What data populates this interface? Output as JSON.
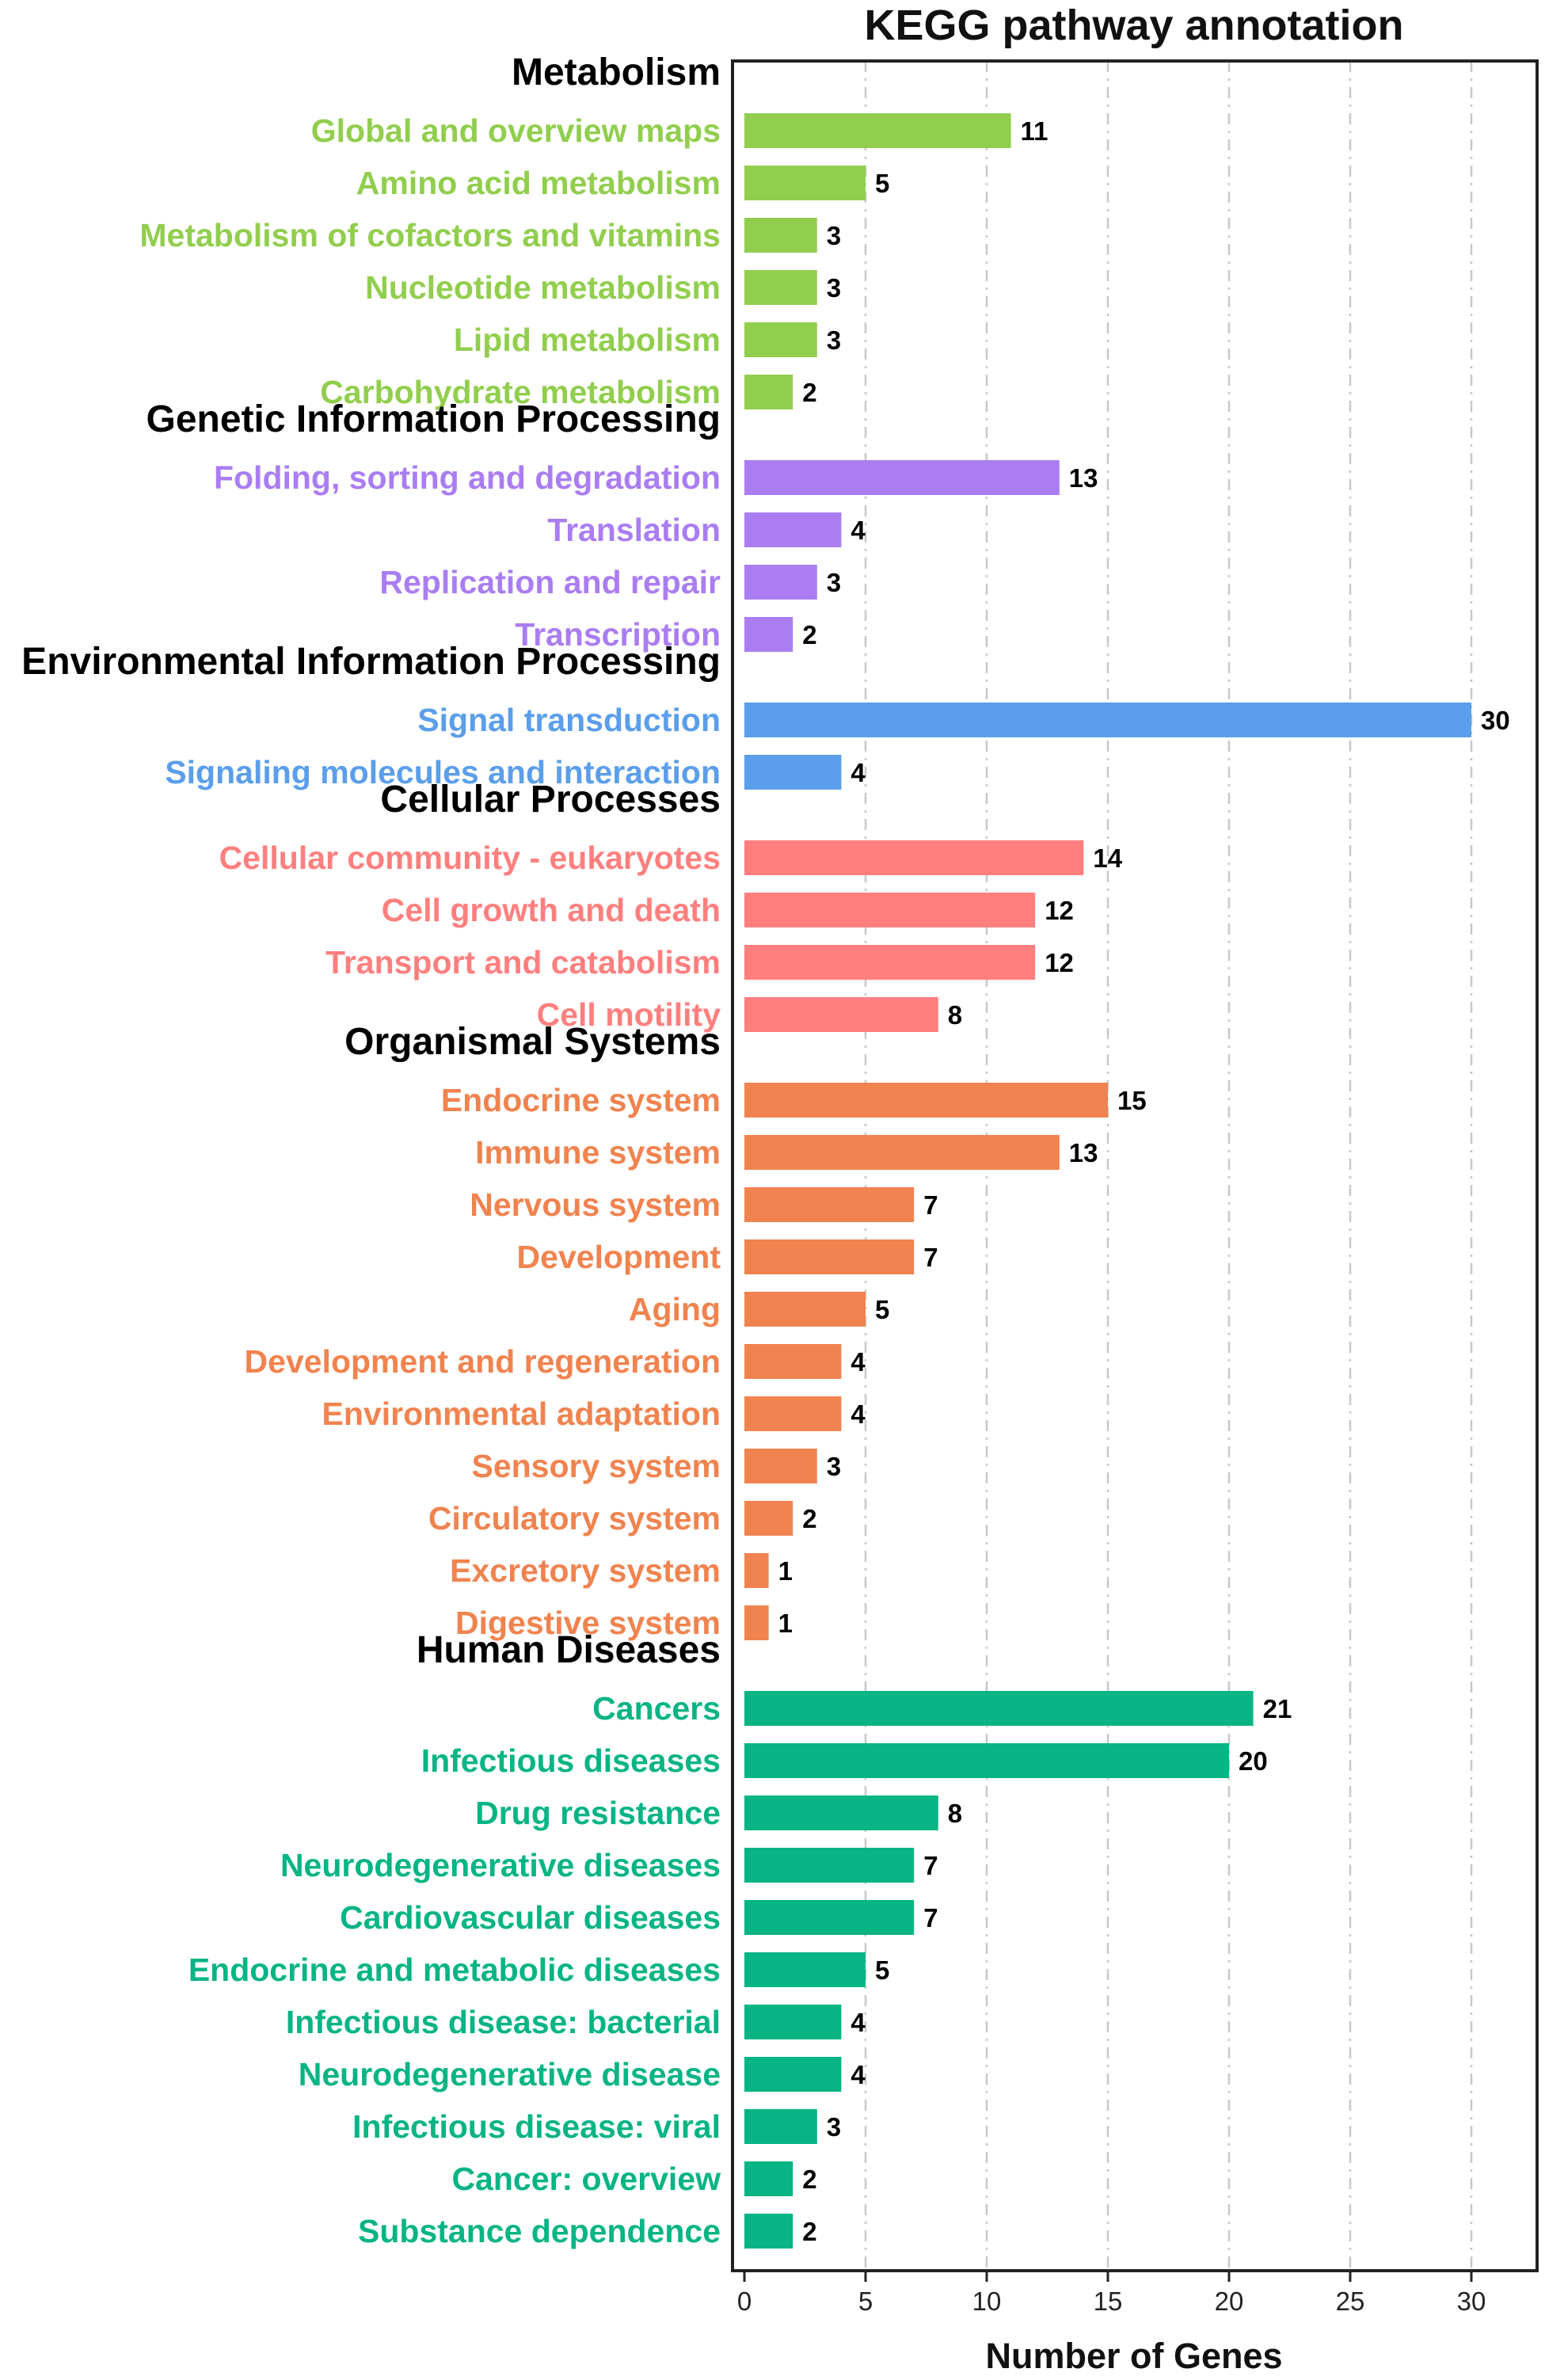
{
  "chart_data": {
    "type": "bar",
    "orientation": "horizontal",
    "title": "KEGG pathway annotation",
    "xlabel": "Number of Genes",
    "ylabel": "",
    "xlim": [
      0,
      32.7
    ],
    "xticks": [
      0,
      5,
      10,
      15,
      20,
      25,
      30
    ],
    "grid": "vertical dashed at 5,10,15,20,25,30",
    "legend": "none",
    "groups": [
      {
        "name": "Metabolism",
        "color": "#92CE4E",
        "items": [
          {
            "label": "Global and overview maps",
            "value": 11
          },
          {
            "label": "Amino acid metabolism",
            "value": 5
          },
          {
            "label": "Metabolism of cofactors and vitamins",
            "value": 3
          },
          {
            "label": "Nucleotide metabolism",
            "value": 3
          },
          {
            "label": "Lipid metabolism",
            "value": 3
          },
          {
            "label": "Carbohydrate metabolism",
            "value": 2
          }
        ]
      },
      {
        "name": "Genetic Information Processing",
        "color": "#AA7DF2",
        "items": [
          {
            "label": "Folding, sorting and degradation",
            "value": 13
          },
          {
            "label": "Translation",
            "value": 4
          },
          {
            "label": "Replication and repair",
            "value": 3
          },
          {
            "label": "Transcription",
            "value": 2
          }
        ]
      },
      {
        "name": "Environmental Information Processing",
        "color": "#5B9EEB",
        "items": [
          {
            "label": "Signal transduction",
            "value": 30
          },
          {
            "label": "Signaling molecules and interaction",
            "value": 4
          }
        ]
      },
      {
        "name": "Cellular Processes",
        "color": "#FF7F7F",
        "items": [
          {
            "label": "Cellular community - eukaryotes",
            "value": 14
          },
          {
            "label": "Cell growth and death",
            "value": 12
          },
          {
            "label": "Transport and catabolism",
            "value": 12
          },
          {
            "label": "Cell motility",
            "value": 8
          }
        ]
      },
      {
        "name": "Organismal Systems",
        "color": "#F0834F",
        "items": [
          {
            "label": "Endocrine system",
            "value": 15
          },
          {
            "label": "Immune system",
            "value": 13
          },
          {
            "label": "Nervous system",
            "value": 7
          },
          {
            "label": "Development",
            "value": 7
          },
          {
            "label": "Aging",
            "value": 5
          },
          {
            "label": "Development and regeneration",
            "value": 4
          },
          {
            "label": "Environmental adaptation",
            "value": 4
          },
          {
            "label": "Sensory system",
            "value": 3
          },
          {
            "label": "Circulatory system",
            "value": 2
          },
          {
            "label": "Excretory system",
            "value": 1
          },
          {
            "label": "Digestive system",
            "value": 1
          }
        ]
      },
      {
        "name": "Human Diseases",
        "color": "#06B484",
        "items": [
          {
            "label": "Cancers",
            "value": 21
          },
          {
            "label": "Infectious diseases",
            "value": 20
          },
          {
            "label": "Drug resistance",
            "value": 8
          },
          {
            "label": "Neurodegenerative diseases",
            "value": 7
          },
          {
            "label": "Cardiovascular diseases",
            "value": 7
          },
          {
            "label": "Endocrine and metabolic diseases",
            "value": 5
          },
          {
            "label": "Infectious disease: bacterial",
            "value": 4
          },
          {
            "label": "Neurodegenerative disease",
            "value": 4
          },
          {
            "label": "Infectious disease: viral",
            "value": 3
          },
          {
            "label": "Cancer: overview",
            "value": 2
          },
          {
            "label": "Substance dependence",
            "value": 2
          }
        ]
      }
    ]
  }
}
